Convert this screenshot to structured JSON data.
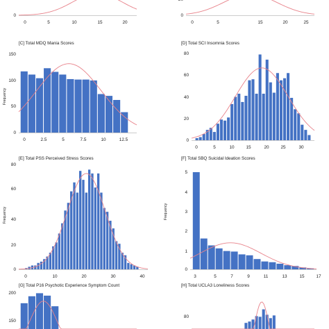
{
  "colors": {
    "bar": "#4472C4",
    "curve": "#E8828A",
    "axis": "#999999",
    "background": "#ffffff"
  },
  "chart_data": [
    {
      "id": "A",
      "type": "bar",
      "title": "",
      "ylabel": "",
      "x_ticks": [
        "0",
        "5",
        "10",
        "15",
        "20"
      ],
      "y_ticks": [
        "0"
      ],
      "x_range": [
        -1,
        23
      ],
      "y_range": [
        0,
        150
      ],
      "curve": {
        "mean": 15,
        "sd": 5,
        "peak": 140
      },
      "bins": [],
      "grid": false,
      "legend": "none"
    },
    {
      "id": "B",
      "type": "bar",
      "title": "",
      "ylabel": "",
      "x_ticks": [
        "0",
        "5",
        "10",
        "15",
        "20",
        "25"
      ],
      "y_ticks": [
        "0",
        "20"
      ],
      "x_range": [
        -1,
        28
      ],
      "y_range": [
        0,
        40
      ],
      "curve": {
        "mean": 13.5,
        "sd": 6,
        "peak": 36
      },
      "bins": [],
      "grid": false,
      "legend": "none"
    },
    {
      "id": "C",
      "type": "bar",
      "title": "[C] Total MDQ Mania Scores",
      "ylabel": "Frequency",
      "x_ticks": [
        "0",
        "2.5",
        "5",
        "7.5",
        "10",
        "12.5"
      ],
      "y_ticks": [
        "0",
        "50",
        "100",
        "150"
      ],
      "x_range": [
        -0.7,
        14.6
      ],
      "y_range": [
        0,
        170
      ],
      "curve": {
        "mean": 5.8,
        "sd": 4.2,
        "peak": 152
      },
      "bins": [
        {
          "x": 0,
          "count": 135
        },
        {
          "x": 1,
          "count": 128
        },
        {
          "x": 2,
          "count": 120
        },
        {
          "x": 3,
          "count": 142
        },
        {
          "x": 4,
          "count": 134
        },
        {
          "x": 5,
          "count": 128
        },
        {
          "x": 6,
          "count": 118
        },
        {
          "x": 7,
          "count": 117
        },
        {
          "x": 8,
          "count": 117
        },
        {
          "x": 9,
          "count": 115
        },
        {
          "x": 10,
          "count": 85
        },
        {
          "x": 11,
          "count": 81
        },
        {
          "x": 12,
          "count": 72
        },
        {
          "x": 13,
          "count": 45
        }
      ],
      "grid": false,
      "legend": "none"
    },
    {
      "id": "D",
      "type": "bar",
      "title": "[D] Total SCI Insomnia Scores",
      "ylabel": "",
      "x_ticks": [
        "0",
        "5",
        "10",
        "15",
        "20",
        "25",
        "30"
      ],
      "y_ticks": [
        "0",
        "20",
        "40",
        "60",
        "80"
      ],
      "x_range": [
        -1.5,
        33.5
      ],
      "y_range": [
        0,
        86
      ],
      "curve": {
        "mean": 18.5,
        "sd": 7.5,
        "peak": 70
      },
      "bins": [
        {
          "x": 0,
          "count": 2
        },
        {
          "x": 1,
          "count": 3
        },
        {
          "x": 2,
          "count": 6
        },
        {
          "x": 3,
          "count": 10
        },
        {
          "x": 4,
          "count": 12
        },
        {
          "x": 5,
          "count": 8
        },
        {
          "x": 6,
          "count": 16
        },
        {
          "x": 7,
          "count": 20
        },
        {
          "x": 8,
          "count": 19
        },
        {
          "x": 9,
          "count": 22
        },
        {
          "x": 10,
          "count": 35
        },
        {
          "x": 11,
          "count": 42
        },
        {
          "x": 12,
          "count": 45
        },
        {
          "x": 13,
          "count": 37
        },
        {
          "x": 14,
          "count": 43
        },
        {
          "x": 15,
          "count": 58
        },
        {
          "x": 16,
          "count": 59
        },
        {
          "x": 17,
          "count": 45
        },
        {
          "x": 18,
          "count": 83
        },
        {
          "x": 19,
          "count": 45
        },
        {
          "x": 20,
          "count": 78
        },
        {
          "x": 21,
          "count": 56
        },
        {
          "x": 22,
          "count": 46
        },
        {
          "x": 23,
          "count": 65
        },
        {
          "x": 24,
          "count": 58
        },
        {
          "x": 25,
          "count": 60
        },
        {
          "x": 26,
          "count": 65
        },
        {
          "x": 27,
          "count": 41
        },
        {
          "x": 28,
          "count": 30
        },
        {
          "x": 29,
          "count": 26
        },
        {
          "x": 30,
          "count": 15
        },
        {
          "x": 31,
          "count": 10
        },
        {
          "x": 32,
          "count": 5
        }
      ],
      "grid": false,
      "legend": "none"
    },
    {
      "id": "E",
      "type": "bar",
      "title": "[E] Total PSS Perceived Stress Scores",
      "ylabel": "Frequency",
      "x_ticks": [
        "0",
        "10",
        "20",
        "30",
        "40"
      ],
      "y_ticks": [
        "0",
        "20",
        "40",
        "60",
        "80"
      ],
      "x_range": [
        -1.5,
        41.5
      ],
      "y_range": [
        0,
        82
      ],
      "curve": {
        "mean": 21,
        "sd": 6.3,
        "peak": 75
      },
      "bins": [
        {
          "x": 1,
          "count": 1
        },
        {
          "x": 2,
          "count": 2
        },
        {
          "x": 3,
          "count": 3
        },
        {
          "x": 4,
          "count": 3
        },
        {
          "x": 5,
          "count": 5
        },
        {
          "x": 6,
          "count": 6
        },
        {
          "x": 7,
          "count": 8
        },
        {
          "x": 8,
          "count": 10
        },
        {
          "x": 9,
          "count": 13
        },
        {
          "x": 10,
          "count": 18
        },
        {
          "x": 11,
          "count": 21
        },
        {
          "x": 12,
          "count": 28
        },
        {
          "x": 13,
          "count": 36
        },
        {
          "x": 14,
          "count": 46
        },
        {
          "x": 15,
          "count": 52
        },
        {
          "x": 16,
          "count": 61
        },
        {
          "x": 17,
          "count": 68
        },
        {
          "x": 18,
          "count": 60
        },
        {
          "x": 19,
          "count": 77
        },
        {
          "x": 20,
          "count": 70
        },
        {
          "x": 21,
          "count": 60
        },
        {
          "x": 22,
          "count": 78
        },
        {
          "x": 23,
          "count": 75
        },
        {
          "x": 24,
          "count": 64
        },
        {
          "x": 25,
          "count": 75
        },
        {
          "x": 26,
          "count": 60
        },
        {
          "x": 27,
          "count": 48
        },
        {
          "x": 28,
          "count": 45
        },
        {
          "x": 29,
          "count": 38
        },
        {
          "x": 30,
          "count": 32
        },
        {
          "x": 31,
          "count": 22
        },
        {
          "x": 32,
          "count": 20
        },
        {
          "x": 33,
          "count": 13
        },
        {
          "x": 34,
          "count": 11
        },
        {
          "x": 35,
          "count": 5
        },
        {
          "x": 36,
          "count": 4
        },
        {
          "x": 37,
          "count": 3
        },
        {
          "x": 38,
          "count": 2
        }
      ],
      "grid": false,
      "legend": "none"
    },
    {
      "id": "F",
      "type": "bar",
      "title": "[F] Total SBQ Suicidal Ideation Scores",
      "ylabel": "Frequency",
      "x_ticks": [
        "3",
        "5",
        "7",
        "9",
        "11",
        "13",
        "15",
        "17"
      ],
      "y_ticks": [
        "0",
        "1",
        "2",
        "3",
        "4",
        "5"
      ],
      "x_range": [
        2.2,
        18.8
      ],
      "y_range": [
        0,
        5.35
      ],
      "curve": {
        "mean": 7.5,
        "sd": 4.0,
        "peak": 1.42
      },
      "bins": [
        {
          "x": 3,
          "count": 5.2
        },
        {
          "x": 4,
          "count": 1.65
        },
        {
          "x": 5,
          "count": 1.28
        },
        {
          "x": 6,
          "count": 1.12
        },
        {
          "x": 7,
          "count": 0.98
        },
        {
          "x": 8,
          "count": 0.95
        },
        {
          "x": 9,
          "count": 0.8
        },
        {
          "x": 10,
          "count": 0.75
        },
        {
          "x": 11,
          "count": 0.55
        },
        {
          "x": 12,
          "count": 0.42
        },
        {
          "x": 13,
          "count": 0.38
        },
        {
          "x": 14,
          "count": 0.3
        },
        {
          "x": 15,
          "count": 0.22
        },
        {
          "x": 16,
          "count": 0.18
        },
        {
          "x": 17,
          "count": 0.1
        },
        {
          "x": 18,
          "count": 0.05
        }
      ],
      "grid": false,
      "legend": "none"
    },
    {
      "id": "G",
      "type": "bar",
      "title": "[G] Total P16 Psychotic Experience Symptom Count",
      "ylabel": "",
      "x_ticks": [],
      "y_ticks": [
        "150",
        "200"
      ],
      "x_range": [
        -0.7,
        14.6
      ],
      "y_range": [
        80,
        215
      ],
      "curve": {
        "mean": 2.5,
        "sd": 1.8,
        "peak": 172
      },
      "bins": [
        {
          "x": 0,
          "count": 165
        },
        {
          "x": 1,
          "count": 188
        },
        {
          "x": 2,
          "count": 198
        },
        {
          "x": 3,
          "count": 190
        },
        {
          "x": 4,
          "count": 155
        }
      ],
      "grid": false,
      "legend": "none"
    },
    {
      "id": "H",
      "type": "bar",
      "title": "[H] Total UCLA3 Loneliness Scores",
      "ylabel": "",
      "x_ticks": [],
      "y_ticks": [
        "80"
      ],
      "x_range": [
        -1.5,
        33.5
      ],
      "y_range": [
        55,
        102
      ],
      "curve": {
        "mean": 18.5,
        "sd": 2.2,
        "peak": 95
      },
      "bins": [
        {
          "x": 14,
          "count": 64
        },
        {
          "x": 15,
          "count": 66
        },
        {
          "x": 16,
          "count": 69
        },
        {
          "x": 17,
          "count": 74
        },
        {
          "x": 18,
          "count": 73
        },
        {
          "x": 19,
          "count": 84
        },
        {
          "x": 20,
          "count": 76
        },
        {
          "x": 21,
          "count": 71
        },
        {
          "x": 22,
          "count": 75
        }
      ],
      "grid": false,
      "legend": "none"
    }
  ]
}
